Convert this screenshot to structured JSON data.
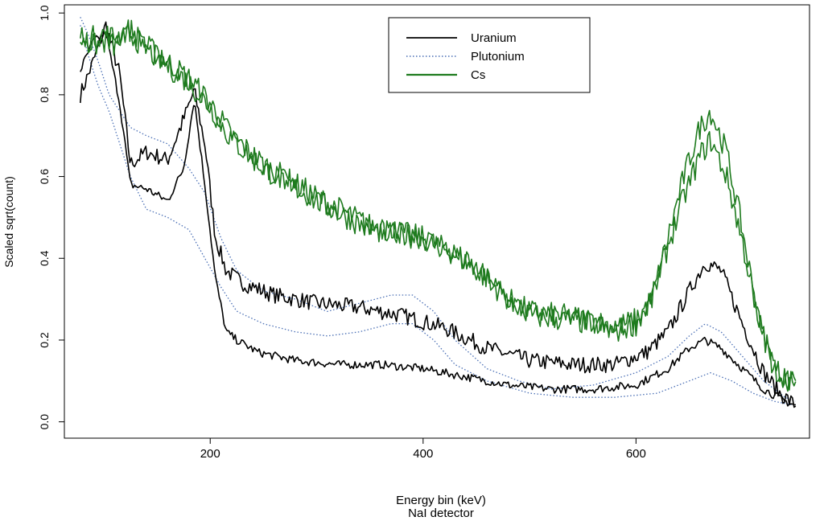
{
  "chart_data": {
    "type": "line",
    "title": "",
    "xlabel": "Energy bin (keV)",
    "xlabel2": "NaI detector",
    "ylabel": "Scaled sqrt(count)",
    "xlim": [
      63,
      763
    ],
    "ylim": [
      -0.04,
      1.02
    ],
    "xticks": [
      200,
      400,
      600
    ],
    "yticks": [
      0.0,
      0.2,
      0.4,
      0.6,
      0.8,
      1.0
    ],
    "xtick_labels": [
      "200",
      "400",
      "600"
    ],
    "ytick_labels": [
      "0.0",
      "0.2",
      "0.4",
      "0.6",
      "0.8",
      "1.0"
    ],
    "legend_position": "top-center",
    "legend": [
      "Uranium",
      "Plutonium",
      "Cs"
    ],
    "series": [
      {
        "name": "Uranium",
        "style": "solid",
        "color": "#000000",
        "noise": 0.02,
        "x": [
          78,
          90,
          102,
          115,
          125,
          140,
          160,
          175,
          185,
          195,
          205,
          215,
          230,
          260,
          300,
          340,
          380,
          420,
          460,
          500,
          540,
          580,
          610,
          630,
          650,
          665,
          680,
          700,
          720,
          735,
          750
        ],
        "y": [
          0.8,
          0.88,
          0.97,
          0.85,
          0.63,
          0.66,
          0.64,
          0.74,
          0.81,
          0.68,
          0.45,
          0.37,
          0.34,
          0.31,
          0.29,
          0.28,
          0.26,
          0.23,
          0.18,
          0.15,
          0.14,
          0.14,
          0.17,
          0.22,
          0.32,
          0.39,
          0.37,
          0.24,
          0.12,
          0.07,
          0.04
        ]
      },
      {
        "name": "Uranium",
        "style": "solid",
        "color": "#000000",
        "noise": 0.01,
        "x": [
          78,
          90,
          102,
          115,
          125,
          140,
          160,
          175,
          185,
          195,
          205,
          215,
          225,
          245,
          280,
          320,
          360,
          400,
          440,
          480,
          520,
          560,
          600,
          630,
          650,
          665,
          680,
          700,
          720,
          740,
          750
        ],
        "y": [
          0.86,
          0.93,
          0.95,
          0.78,
          0.58,
          0.57,
          0.54,
          0.62,
          0.79,
          0.58,
          0.35,
          0.22,
          0.2,
          0.17,
          0.15,
          0.14,
          0.14,
          0.13,
          0.11,
          0.09,
          0.08,
          0.08,
          0.09,
          0.13,
          0.18,
          0.2,
          0.18,
          0.13,
          0.08,
          0.05,
          0.04
        ]
      },
      {
        "name": "Plutonium",
        "style": "dotted",
        "color": "#4a6fb5",
        "noise": 0,
        "x": [
          78,
          85,
          95,
          105,
          115,
          125,
          140,
          160,
          180,
          195,
          210,
          225,
          250,
          280,
          310,
          340,
          370,
          390,
          410,
          430,
          460,
          490,
          520,
          560,
          600,
          630,
          650,
          665,
          680,
          700,
          720,
          740,
          750
        ],
        "y": [
          0.99,
          0.95,
          0.88,
          0.8,
          0.76,
          0.72,
          0.7,
          0.68,
          0.62,
          0.56,
          0.45,
          0.37,
          0.32,
          0.3,
          0.27,
          0.29,
          0.31,
          0.31,
          0.27,
          0.2,
          0.13,
          0.1,
          0.08,
          0.09,
          0.12,
          0.16,
          0.21,
          0.24,
          0.22,
          0.16,
          0.1,
          0.06,
          0.05
        ]
      },
      {
        "name": "Plutonium",
        "style": "dotted",
        "color": "#4a6fb5",
        "noise": 0,
        "x": [
          78,
          85,
          95,
          105,
          115,
          125,
          140,
          160,
          180,
          195,
          210,
          225,
          250,
          280,
          310,
          340,
          370,
          390,
          410,
          430,
          460,
          500,
          540,
          580,
          620,
          650,
          670,
          690,
          710,
          730,
          750
        ],
        "y": [
          0.97,
          0.9,
          0.82,
          0.76,
          0.68,
          0.6,
          0.52,
          0.5,
          0.47,
          0.4,
          0.33,
          0.27,
          0.24,
          0.22,
          0.21,
          0.22,
          0.24,
          0.24,
          0.2,
          0.14,
          0.1,
          0.07,
          0.06,
          0.06,
          0.07,
          0.1,
          0.12,
          0.1,
          0.07,
          0.05,
          0.04
        ]
      },
      {
        "name": "Cs",
        "style": "solid",
        "color": "#1e7b1e",
        "noise": 0.03,
        "x": [
          78,
          90,
          100,
          110,
          125,
          140,
          160,
          180,
          200,
          220,
          250,
          300,
          350,
          400,
          430,
          460,
          480,
          500,
          530,
          560,
          580,
          600,
          615,
          630,
          645,
          660,
          670,
          685,
          700,
          715,
          730,
          745,
          750
        ],
        "y": [
          0.92,
          0.94,
          0.95,
          0.94,
          0.96,
          0.92,
          0.88,
          0.84,
          0.78,
          0.7,
          0.63,
          0.55,
          0.48,
          0.45,
          0.41,
          0.35,
          0.3,
          0.27,
          0.26,
          0.25,
          0.23,
          0.25,
          0.3,
          0.45,
          0.6,
          0.72,
          0.76,
          0.66,
          0.47,
          0.25,
          0.13,
          0.1,
          0.1
        ]
      },
      {
        "name": "Cs",
        "style": "solid",
        "color": "#1e7b1e",
        "noise": 0.03,
        "x": [
          78,
          90,
          100,
          110,
          125,
          140,
          160,
          180,
          200,
          220,
          250,
          300,
          350,
          400,
          430,
          460,
          480,
          500,
          530,
          560,
          580,
          600,
          615,
          630,
          645,
          660,
          670,
          685,
          700,
          715,
          730,
          745,
          750
        ],
        "y": [
          0.95,
          0.92,
          0.93,
          0.92,
          0.95,
          0.91,
          0.87,
          0.83,
          0.77,
          0.69,
          0.62,
          0.54,
          0.47,
          0.45,
          0.41,
          0.35,
          0.3,
          0.26,
          0.25,
          0.24,
          0.22,
          0.24,
          0.3,
          0.43,
          0.55,
          0.65,
          0.69,
          0.6,
          0.44,
          0.25,
          0.13,
          0.1,
          0.09
        ]
      }
    ]
  }
}
